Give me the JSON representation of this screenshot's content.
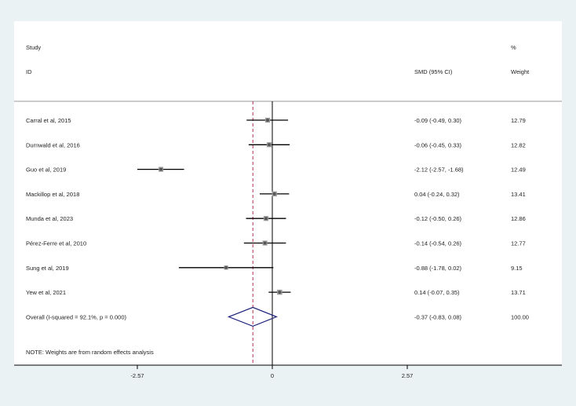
{
  "chart_data": {
    "type": "forest",
    "headers": {
      "study_line1": "Study",
      "study_line2": "ID",
      "effect_label": "SMD (95% CI)",
      "weight_line1": "%",
      "weight_line2": "Weight"
    },
    "studies": [
      {
        "label": "Carral et al, 2015",
        "smd": -0.09,
        "lo": -0.49,
        "hi": 0.3,
        "ci_text": "-0.09 (-0.49, 0.30)",
        "weight": "12.79"
      },
      {
        "label": "Durnwald et al, 2016",
        "smd": -0.06,
        "lo": -0.45,
        "hi": 0.33,
        "ci_text": "-0.06 (-0.45, 0.33)",
        "weight": "12.82"
      },
      {
        "label": "Guo et al, 2019",
        "smd": -2.12,
        "lo": -2.57,
        "hi": -1.68,
        "ci_text": "-2.12 (-2.57, -1.68)",
        "weight": "12.49"
      },
      {
        "label": "Mackillop et al, 2018",
        "smd": 0.04,
        "lo": -0.24,
        "hi": 0.32,
        "ci_text": "0.04 (-0.24, 0.32)",
        "weight": "13.41"
      },
      {
        "label": "Munda et al, 2023",
        "smd": -0.12,
        "lo": -0.5,
        "hi": 0.26,
        "ci_text": "-0.12 (-0.50, 0.26)",
        "weight": "12.86"
      },
      {
        "label": "Pérez-Ferre et al, 2010",
        "smd": -0.14,
        "lo": -0.54,
        "hi": 0.26,
        "ci_text": "-0.14 (-0.54, 0.26)",
        "weight": "12.77"
      },
      {
        "label": "Sung et al, 2019",
        "smd": -0.88,
        "lo": -1.78,
        "hi": 0.02,
        "ci_text": "-0.88 (-1.78, 0.02)",
        "weight": "9.15"
      },
      {
        "label": "Yew et al, 2021",
        "smd": 0.14,
        "lo": -0.07,
        "hi": 0.35,
        "ci_text": "0.14 (-0.07, 0.35)",
        "weight": "13.71"
      }
    ],
    "overall": {
      "label": "Overall  (I-squared = 92.1%, p = 0.000)",
      "smd": -0.37,
      "lo": -0.83,
      "hi": 0.08,
      "ci_text": "-0.37 (-0.83, 0.08)",
      "weight": "100.00"
    },
    "note": "NOTE: Weights are from random effects analysis",
    "x_ticks": [
      -2.57,
      0,
      2.57
    ],
    "x_tick_labels": [
      "-2.57",
      "0",
      "2.57"
    ],
    "xlim": [
      -2.57,
      2.57
    ],
    "null_line": 0,
    "colors": {
      "ci": "#000000",
      "diamond": "#1a1f7a",
      "overall_line": "#b03050",
      "marker": "#555555",
      "box": "#9a9a9a"
    }
  }
}
